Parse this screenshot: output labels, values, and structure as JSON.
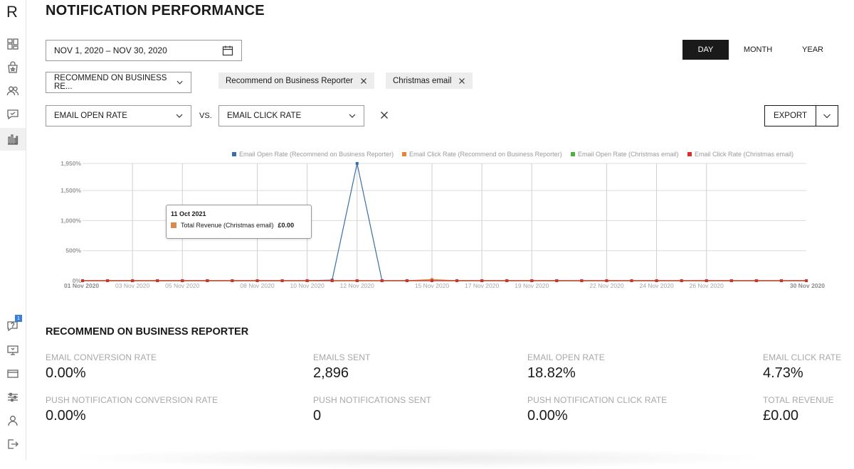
{
  "app": {
    "logo": "R"
  },
  "page": {
    "title": "NOTIFICATION PERFORMANCE"
  },
  "sidebar": {
    "icons": [
      "dashboard-icon",
      "shopping-bag-star-icon",
      "users-icon",
      "chat-icon",
      "chart-icon",
      "help-chat-icon",
      "monitor-icon",
      "credit-card-icon",
      "sliders-icon",
      "user-icon",
      "logout-icon"
    ],
    "badge_count": "1"
  },
  "filters": {
    "date_range": "NOV 1, 2020 – NOV 30, 2020",
    "period_tabs": [
      "DAY",
      "MONTH",
      "YEAR"
    ],
    "active_tab": "DAY",
    "campaign_select": "RECOMMEND ON BUSINESS RE...",
    "chips": [
      "Recommend on Business Reporter",
      "Christmas email"
    ],
    "metric_a": "EMAIL OPEN RATE",
    "vs_label": "VS.",
    "metric_b": "EMAIL CLICK RATE",
    "export_label": "EXPORT"
  },
  "chart_data": {
    "type": "line",
    "legend": [
      {
        "name": "Email Open Rate (Recommend on Business Reporter)",
        "color": "#3a6ea5"
      },
      {
        "name": "Email Click Rate (Recommend on Business Reporter)",
        "color": "#e8833a"
      },
      {
        "name": "Email Open Rate (Christmas email)",
        "color": "#4caf3f"
      },
      {
        "name": "Email Click Rate (Christmas email)",
        "color": "#d0332b"
      }
    ],
    "y_ticks": [
      "0%",
      "500%",
      "1,000%",
      "1,500%",
      "1,950%"
    ],
    "y_tick_values": [
      0,
      500,
      1000,
      1500,
      1950
    ],
    "ylim": [
      0,
      1950
    ],
    "x_ticks": [
      "01 Nov 2020",
      "03 Nov 2020",
      "05 Nov 2020",
      "08 Nov 2020",
      "10 Nov 2020",
      "12 Nov 2020",
      "15 Nov 2020",
      "17 Nov 2020",
      "19 Nov 2020",
      "22 Nov 2020",
      "24 Nov 2020",
      "26 Nov 2020",
      "30 Nov 2020"
    ],
    "x_tick_days": [
      1,
      3,
      5,
      8,
      10,
      12,
      15,
      17,
      19,
      22,
      24,
      26,
      30
    ],
    "x_days": [
      1,
      2,
      3,
      4,
      5,
      6,
      7,
      8,
      9,
      10,
      11,
      12,
      13,
      14,
      15,
      16,
      17,
      18,
      19,
      20,
      21,
      22,
      23,
      24,
      25,
      26,
      27,
      28,
      29,
      30
    ],
    "series": [
      {
        "name": "Email Open Rate (Recommend on Business Reporter)",
        "color": "#3a6ea5",
        "values": [
          0,
          0,
          0,
          0,
          0,
          0,
          0,
          0,
          0,
          0,
          10,
          1950,
          0,
          0,
          0,
          0,
          0,
          0,
          0,
          0,
          0,
          0,
          0,
          0,
          0,
          0,
          0,
          0,
          0,
          0
        ]
      },
      {
        "name": "Email Click Rate (Recommend on Business Reporter)",
        "color": "#e8833a",
        "values": [
          0,
          0,
          0,
          0,
          0,
          0,
          0,
          0,
          0,
          0,
          0,
          0,
          0,
          0,
          20,
          0,
          0,
          0,
          0,
          0,
          0,
          0,
          0,
          0,
          0,
          0,
          0,
          0,
          0,
          0
        ]
      },
      {
        "name": "Email Open Rate (Christmas email)",
        "color": "#4caf3f",
        "values": [
          0,
          0,
          0,
          0,
          0,
          0,
          0,
          0,
          0,
          0,
          0,
          0,
          0,
          0,
          0,
          0,
          0,
          0,
          0,
          0,
          0,
          0,
          0,
          0,
          0,
          0,
          0,
          0,
          0,
          0
        ]
      },
      {
        "name": "Email Click Rate (Christmas email)",
        "color": "#d0332b",
        "values": [
          0,
          0,
          0,
          0,
          0,
          0,
          0,
          0,
          0,
          0,
          0,
          0,
          0,
          0,
          0,
          0,
          0,
          0,
          0,
          0,
          0,
          0,
          0,
          0,
          0,
          0,
          0,
          0,
          0,
          0
        ]
      }
    ],
    "tooltip": {
      "date": "11 Oct 2021",
      "label": "Total Revenue (Christmas email)",
      "value": "£0.00"
    }
  },
  "summary": {
    "title": "RECOMMEND ON BUSINESS REPORTER",
    "stats": [
      {
        "label": "EMAIL CONVERSION RATE",
        "value": "0.00%"
      },
      {
        "label": "EMAILS SENT",
        "value": "2,896"
      },
      {
        "label": "EMAIL OPEN RATE",
        "value": "18.82%"
      },
      {
        "label": "EMAIL CLICK RATE",
        "value": "4.73%"
      },
      {
        "label": "PUSH NOTIFICATION CONVERSION RATE",
        "value": "0.00%"
      },
      {
        "label": "PUSH NOTIFICATIONS SENT",
        "value": "0"
      },
      {
        "label": "PUSH NOTIFICATION CLICK RATE",
        "value": "0.00%"
      },
      {
        "label": "TOTAL REVENUE",
        "value": "£0.00"
      }
    ]
  }
}
